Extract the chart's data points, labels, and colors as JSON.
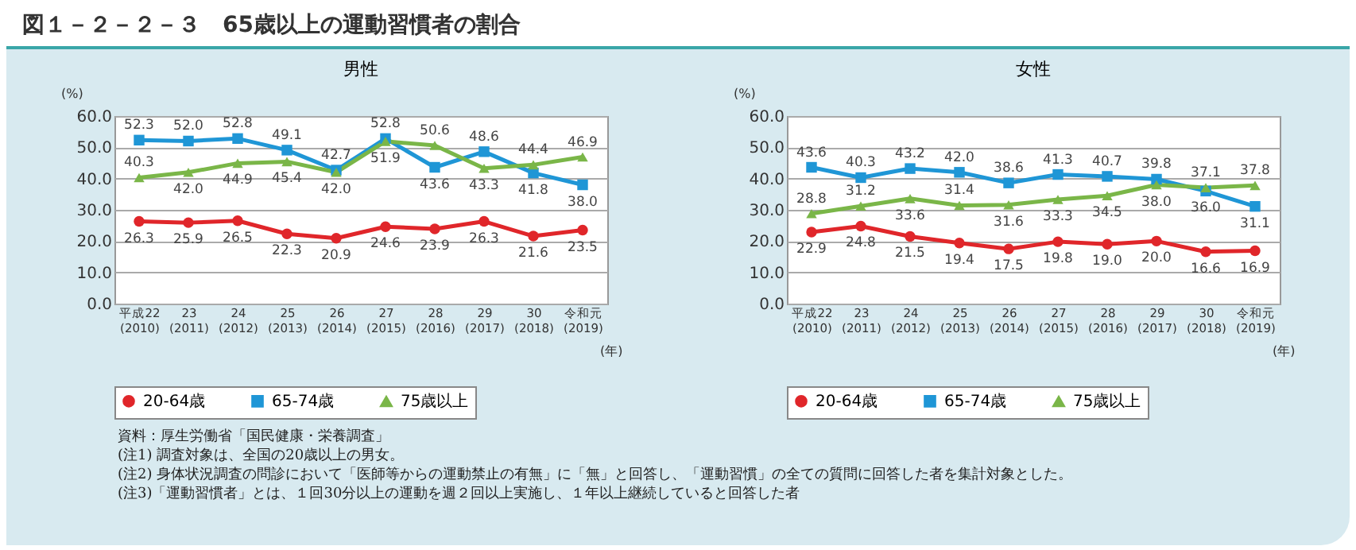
{
  "chart_data": [
    {
      "type": "other",
      "title": "図１－２－２－３　65歳以上の運動習慣者の割合"
    },
    {
      "type": "line",
      "title": "男性",
      "ylabel": "(%)",
      "xlabel": "(年)",
      "categories": [
        "平成22\n(2010)",
        "23\n(2011)",
        "24\n(2012)",
        "25\n(2013)",
        "26\n(2014)",
        "27\n(2015)",
        "28\n(2016)",
        "29\n(2017)",
        "30\n(2018)",
        "令和元\n(2019)"
      ],
      "series": [
        {
          "name": "20-64歳",
          "color": "#e0262a",
          "marker": "circle",
          "values": [
            26.3,
            25.9,
            26.5,
            22.3,
            20.9,
            24.6,
            23.9,
            26.3,
            21.6,
            23.5
          ],
          "value_labels": [
            "26.3",
            "25.9",
            "26.5",
            "22.3",
            "20.9",
            "24.6",
            "23.9",
            "26.3",
            "21.6",
            "23.5"
          ]
        },
        {
          "name": "65-74歳",
          "color": "#1f96d6",
          "marker": "square",
          "values": [
            52.3,
            52.0,
            52.8,
            49.1,
            42.7,
            52.8,
            43.6,
            48.6,
            41.8,
            38.0
          ],
          "value_labels": [
            "52.3",
            "52.0",
            "52.8",
            "49.1",
            "42.7",
            "52.8",
            "43.6",
            "48.6",
            "41.8",
            "38.0"
          ]
        },
        {
          "name": "75歳以上",
          "color": "#7ab648",
          "marker": "triangle",
          "values": [
            40.3,
            42.0,
            44.9,
            45.4,
            42.0,
            51.9,
            50.6,
            43.3,
            44.4,
            46.9
          ],
          "value_labels": [
            "40.3",
            "42.0",
            "44.9",
            "45.4",
            "42.0",
            "51.9",
            "50.6",
            "43.3",
            "44.4",
            "46.9"
          ]
        }
      ],
      "ylim": [
        0,
        60
      ],
      "yticks": [
        {
          "value": 0,
          "label": "0.0"
        },
        {
          "value": 10,
          "label": "10.0"
        },
        {
          "value": 20,
          "label": "20.0"
        },
        {
          "value": 30,
          "label": "30.0"
        },
        {
          "value": 40,
          "label": "40.0"
        },
        {
          "value": 50,
          "label": "50.0"
        },
        {
          "value": 60,
          "label": "60.0"
        }
      ],
      "grid": "y",
      "legend": "bottom"
    },
    {
      "type": "line",
      "title": "女性",
      "ylabel": "(%)",
      "xlabel": "(年)",
      "categories": [
        "平成22\n(2010)",
        "23\n(2011)",
        "24\n(2012)",
        "25\n(2013)",
        "26\n(2014)",
        "27\n(2015)",
        "28\n(2016)",
        "29\n(2017)",
        "30\n(2018)",
        "令和元\n(2019)"
      ],
      "series": [
        {
          "name": "20-64歳",
          "color": "#e0262a",
          "marker": "circle",
          "values": [
            22.9,
            24.8,
            21.5,
            19.4,
            17.5,
            19.8,
            19.0,
            20.0,
            16.6,
            16.9
          ],
          "value_labels": [
            "22.9",
            "24.8",
            "21.5",
            "19.4",
            "17.5",
            "19.8",
            "19.0",
            "20.0",
            "16.6",
            "16.9"
          ]
        },
        {
          "name": "65-74歳",
          "color": "#1f96d6",
          "marker": "square",
          "values": [
            43.6,
            40.3,
            43.2,
            42.0,
            38.6,
            41.3,
            40.7,
            39.8,
            36.0,
            31.1
          ],
          "value_labels": [
            "43.6",
            "40.3",
            "43.2",
            "42.0",
            "38.6",
            "41.3",
            "40.7",
            "39.8",
            "36.0",
            "31.1"
          ]
        },
        {
          "name": "75歳以上",
          "color": "#7ab648",
          "marker": "triangle",
          "values": [
            28.8,
            31.2,
            33.6,
            31.4,
            31.6,
            33.3,
            34.5,
            38.0,
            37.1,
            37.8
          ],
          "value_labels": [
            "28.8",
            "31.2",
            "33.6",
            "31.4",
            "31.6",
            "33.3",
            "34.5",
            "38.0",
            "37.1",
            "37.8"
          ]
        }
      ],
      "ylim": [
        0,
        60
      ],
      "yticks": [
        {
          "value": 0,
          "label": "0.0"
        },
        {
          "value": 10,
          "label": "10.0"
        },
        {
          "value": 20,
          "label": "20.0"
        },
        {
          "value": 30,
          "label": "30.0"
        },
        {
          "value": 40,
          "label": "40.0"
        },
        {
          "value": 50,
          "label": "50.0"
        },
        {
          "value": 60,
          "label": "60.0"
        }
      ],
      "grid": "y",
      "legend": "bottom"
    },
    {
      "type": "other",
      "annotations": [
        "資料：厚生労働省「国民健康・栄養調査」",
        "(注1) 調査対象は、全国の20歳以上の男女。",
        "(注2) 身体状況調査の問診において「医師等からの運動禁止の有無」に「無」と回答し、「運動習慣」の全ての質問に回答した者を集計対象とした。",
        "(注3)「運動習慣者」とは、１回30分以上の運動を週２回以上実施し、１年以上継続していると回答した者"
      ]
    }
  ]
}
